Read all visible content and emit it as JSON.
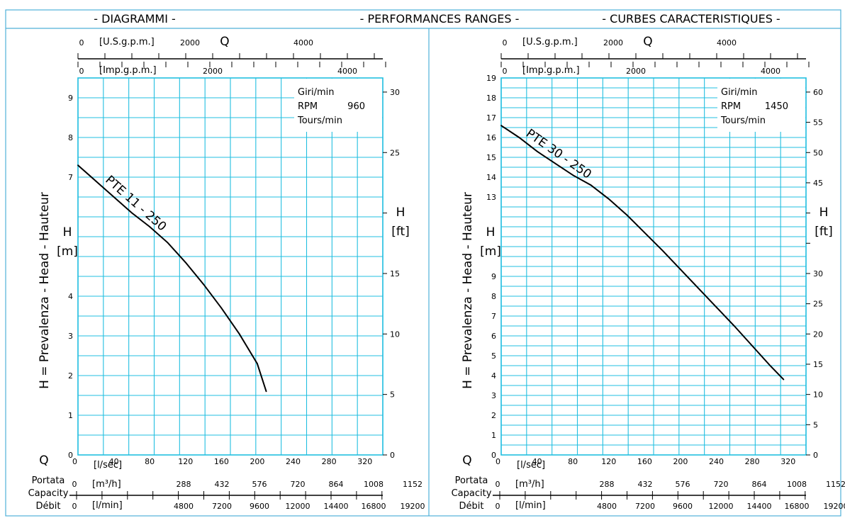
{
  "header": {
    "left": "- DIAGRAMMI -",
    "center": "- PERFORMANCES RANGES -",
    "right": "- CURBES CARACTERISTIQUES -"
  },
  "colors": {
    "grid": "#22bfe0",
    "frame": "#4fb0d8",
    "curve": "#000000",
    "text": "#000000"
  },
  "chart_data": [
    {
      "type": "line",
      "series": [
        {
          "name": "PTE 11 - 250",
          "x": [
            0,
            20,
            40,
            60,
            80,
            100,
            120,
            140,
            160,
            180,
            200,
            210
          ],
          "y": [
            7.3,
            6.9,
            6.5,
            6.1,
            5.75,
            5.35,
            4.85,
            4.3,
            3.7,
            3.05,
            2.3,
            1.6
          ]
        }
      ],
      "xlabel": "[l/sec]",
      "x_ticks": [
        "0",
        "40",
        "80",
        "120",
        "160",
        "200",
        "240",
        "280",
        "320"
      ],
      "xlim": [
        0,
        340
      ],
      "ylabel": "H\n[m]",
      "ylabel_side": "H = Prevalenza - Head - Hauteur",
      "y_ticks": [
        "0",
        "1",
        "2",
        "3",
        "4",
        "5",
        "6",
        "7",
        "8",
        "9"
      ],
      "y_tick_labels_shown": [
        "0",
        "1",
        "2",
        "3",
        "4",
        "",
        "",
        "7",
        "8",
        "9"
      ],
      "ylim": [
        0,
        9.5
      ],
      "y2label": "H\n[ft]",
      "y2_ticks": [
        "0",
        "5",
        "10",
        "15",
        "20",
        "25",
        "30"
      ],
      "y2_tick_labels_shown": [
        "0",
        "5",
        "10",
        "15",
        "",
        "25",
        "30"
      ],
      "usgpm_label": "[U.S.g.p.m.]",
      "usgpm_ticks": [
        "0",
        "2000",
        "4000"
      ],
      "usgpm_q": "Q",
      "impgpm_label": "[Imp.g.p.m.]",
      "impgpm_ticks": [
        "0",
        "2000",
        "4000"
      ],
      "m3h_label": "[m³/h]",
      "m3h_ticks": [
        "0",
        "288",
        "432",
        "576",
        "720",
        "864",
        "1008",
        "1152"
      ],
      "lmin_label": "[l/min]",
      "lmin_ticks": [
        "0",
        "4800",
        "7200",
        "9600",
        "12000",
        "14400",
        "16800",
        "19200"
      ],
      "rpm_label_1": "Giri/min",
      "rpm_label_2": "RPM",
      "rpm_value": "960",
      "rpm_label_3": "Tours/min",
      "q_label": "Q",
      "flow_labels": [
        "Portata",
        "Capacity",
        "Débit"
      ],
      "grid": true
    },
    {
      "type": "line",
      "series": [
        {
          "name": "PTE 30 - 250",
          "x": [
            0,
            20,
            40,
            60,
            80,
            100,
            120,
            140,
            160,
            180,
            200,
            220,
            240,
            260,
            280,
            300,
            315
          ],
          "y": [
            16.6,
            16.0,
            15.3,
            14.7,
            14.1,
            13.6,
            12.9,
            12.1,
            11.2,
            10.3,
            9.35,
            8.4,
            7.45,
            6.5,
            5.5,
            4.5,
            3.8
          ]
        }
      ],
      "xlabel": "[l/sec]",
      "x_ticks": [
        "0",
        "40",
        "80",
        "120",
        "160",
        "200",
        "240",
        "280",
        "320"
      ],
      "xlim": [
        0,
        340
      ],
      "ylabel": "H\n[m]",
      "ylabel_side": "H = Prevalenza - Head - Hauteur",
      "y_ticks": [
        "0",
        "1",
        "2",
        "3",
        "4",
        "5",
        "6",
        "7",
        "8",
        "9",
        "10",
        "11",
        "12",
        "13",
        "14",
        "15",
        "16",
        "17",
        "18",
        "19"
      ],
      "y_tick_labels_shown": [
        "0",
        "1",
        "2",
        "3",
        "4",
        "5",
        "6",
        "7",
        "8",
        "9",
        "",
        "",
        "",
        "13",
        "14",
        "15",
        "16",
        "17",
        "18",
        "19"
      ],
      "ylim": [
        0,
        19
      ],
      "y2label": "H\n[ft]",
      "y2_ticks": [
        "0",
        "5",
        "10",
        "15",
        "20",
        "25",
        "30",
        "35",
        "40",
        "45",
        "50",
        "55",
        "60"
      ],
      "y2_tick_labels_shown": [
        "0",
        "5",
        "10",
        "15",
        "20",
        "25",
        "30",
        "",
        "",
        "45",
        "50",
        "55",
        "60"
      ],
      "usgpm_label": "[U.S.g.p.m.]",
      "usgpm_ticks": [
        "0",
        "2000",
        "4000"
      ],
      "usgpm_q": "Q",
      "impgpm_label": "[Imp.g.p.m.]",
      "impgpm_ticks": [
        "0",
        "2000",
        "4000"
      ],
      "m3h_label": "[m³/h]",
      "m3h_ticks": [
        "0",
        "288",
        "432",
        "576",
        "720",
        "864",
        "1008",
        "1152"
      ],
      "lmin_label": "[l/min]",
      "lmin_ticks": [
        "0",
        "4800",
        "7200",
        "9600",
        "12000",
        "14400",
        "16800",
        "19200"
      ],
      "rpm_label_1": "Giri/min",
      "rpm_label_2": "RPM",
      "rpm_value": "1450",
      "rpm_label_3": "Tours/min",
      "q_label": "Q",
      "flow_labels": [
        "Portata",
        "Capacity",
        "Débit"
      ],
      "grid": true
    }
  ]
}
